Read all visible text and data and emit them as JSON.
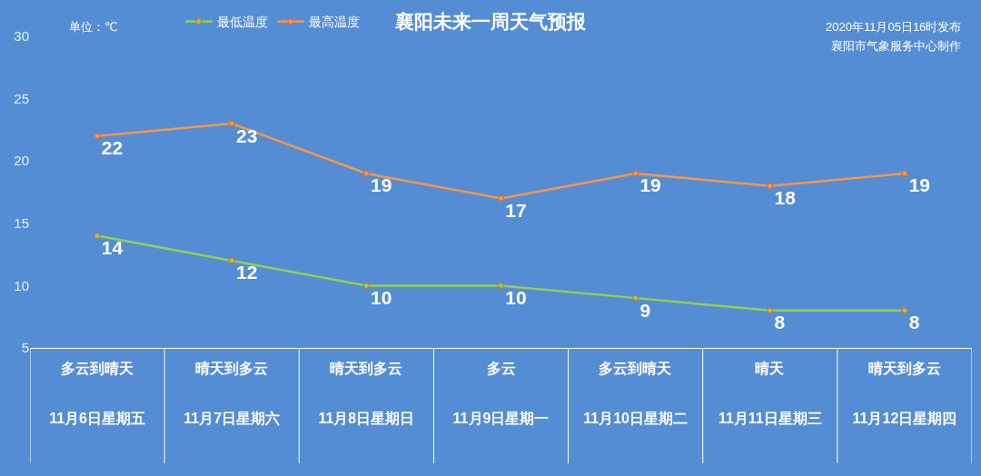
{
  "chart_data": {
    "type": "line",
    "title": "襄阳未来一周天气预报",
    "categories": [
      "11月6日星期五",
      "11月7日星期六",
      "11月8日星期日",
      "11月9日星期一",
      "11月10日星期二",
      "11月11日星期三",
      "11月12日星期四"
    ],
    "series": [
      {
        "name": "最低温度",
        "color": "#92d050",
        "values": [
          14,
          12,
          10,
          10,
          9,
          8,
          8
        ]
      },
      {
        "name": "最高温度",
        "color": "#f79646",
        "values": [
          22,
          23,
          19,
          17,
          19,
          18,
          19
        ]
      }
    ],
    "ylim": [
      5,
      30
    ],
    "yticks": [
      5,
      10,
      15,
      20,
      25,
      30
    ],
    "annotations": [
      "单位：℃",
      "2020年11月05日16时发布",
      "襄阳市气象服务中心制作",
      "多云到晴天",
      "晴天到多云",
      "晴天到多云",
      "多云",
      "多云到晴天",
      "晴天",
      "晴天到多云"
    ],
    "data_labels": true,
    "legend": "top",
    "marker": "circle",
    "grid": false
  }
}
